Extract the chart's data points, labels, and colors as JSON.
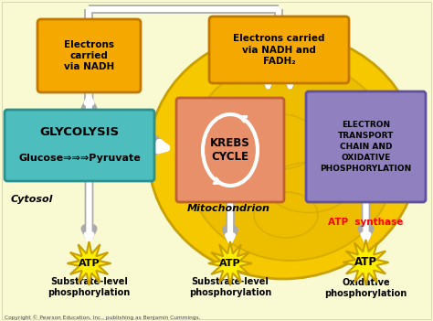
{
  "bg_color": "#FAFAD2",
  "mito_color": "#F5C800",
  "mito_edge_color": "#C8A000",
  "glycolysis_box_color": "#4DBDBD",
  "glycolysis_edge_color": "#2A9090",
  "krebs_box_color": "#E8906A",
  "krebs_edge_color": "#C06030",
  "electron_box_color": "#9080C0",
  "electron_edge_color": "#6050A0",
  "nadh_box_color": "#F5A800",
  "nadh_edge_color": "#C07800",
  "atp_star_color": "#FFEE00",
  "atp_star_border": "#C8A000",
  "arrow_outer_color": "#AAAAAA",
  "arrow_inner_color": "#FFFFFF",
  "copyright": "Copyright © Pearson Education, Inc., publishing as Benjamin Cummings.",
  "cytosol_label": "Cytosol",
  "mitochondrion_label": "Mitochondrion",
  "atp_synthase_label": "ATP  synthase",
  "atp_synthase_color": "#FF0000",
  "glycolysis_title": "GLYCOLYSIS",
  "glycolysis_sub": "Glucose⇒⇒⇒Pyruvate",
  "krebs_title": "KREBS\nCYCLE",
  "electron_title": "ELECTRON\nTRANSPORT\nCHAIN AND\nOXIDATIVE\nPHOSPHORYLATION",
  "nadh1_text": "Electrons\ncarried\nvia NADH",
  "nadh2_text": "Electrons carried\nvia NADH and\nFADH₂",
  "atp_label": "ATP",
  "sub1_label": "Substrate-level\nphosphorylation",
  "sub2_label": "Substrate-level\nphosphorylation",
  "sub3_label": "Oxidative\nphosphorylation"
}
